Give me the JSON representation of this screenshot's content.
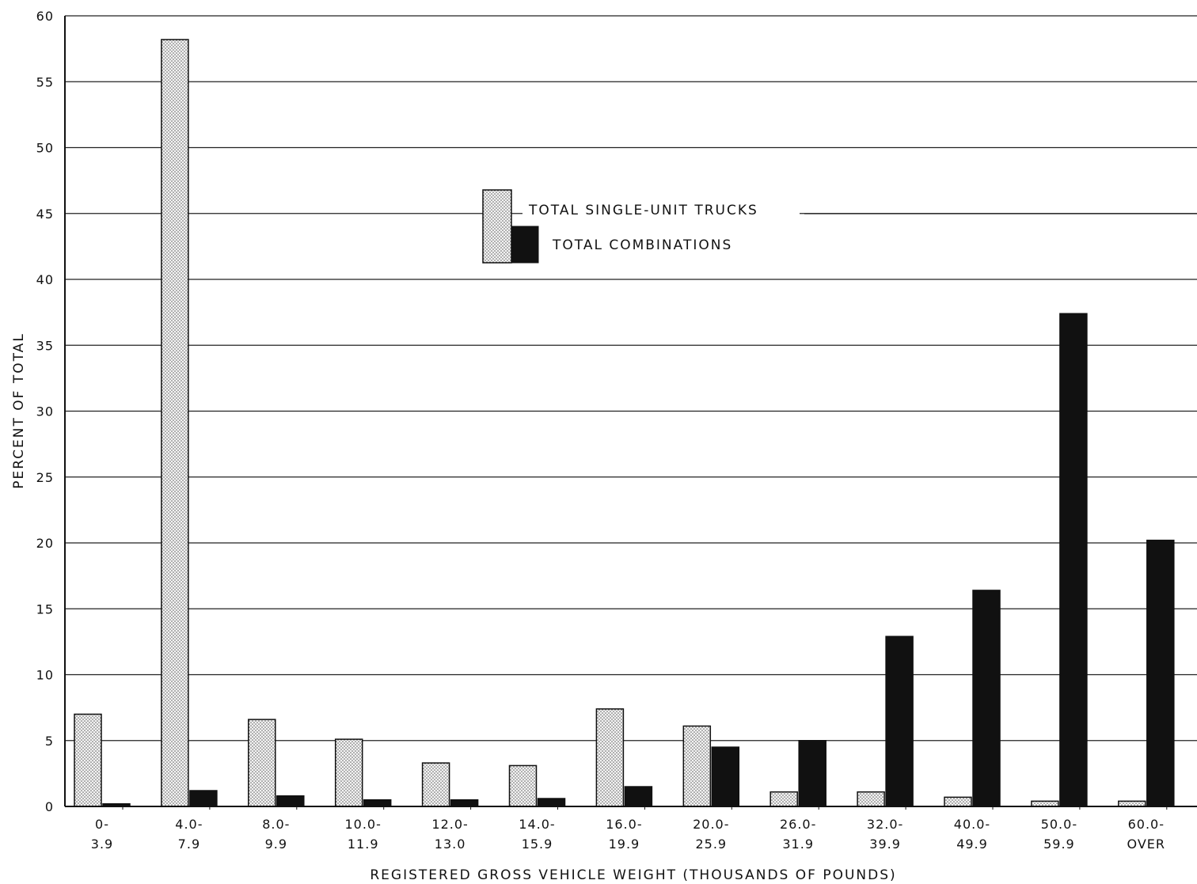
{
  "chart_data": {
    "type": "bar",
    "title": "",
    "xlabel": "REGISTERED GROSS VEHICLE WEIGHT (THOUSANDS OF POUNDS)",
    "ylabel": "PERCENT OF TOTAL",
    "ylim": [
      0,
      60
    ],
    "yticks": [
      "0",
      "5",
      "10",
      "15",
      "20",
      "25",
      "30",
      "35",
      "40",
      "45",
      "50",
      "55",
      "60"
    ],
    "grid": true,
    "legend_position": "center-top",
    "categories": [
      [
        "0-",
        "3.9"
      ],
      [
        "4.0-",
        "7.9"
      ],
      [
        "8.0-",
        "9.9"
      ],
      [
        "10.0-",
        "11.9"
      ],
      [
        "12.0-",
        "13.0"
      ],
      [
        "14.0-",
        "15.9"
      ],
      [
        "16.0-",
        "19.9"
      ],
      [
        "20.0-",
        "25.9"
      ],
      [
        "26.0-",
        "31.9"
      ],
      [
        "32.0-",
        "39.9"
      ],
      [
        "40.0-",
        "49.9"
      ],
      [
        "50.0-",
        "59.9"
      ],
      [
        "60.0-",
        "OVER"
      ]
    ],
    "series": [
      {
        "name": "TOTAL SINGLE-UNIT TRUCKS",
        "pattern": "dotted",
        "values": [
          7.0,
          58.2,
          6.6,
          5.1,
          3.3,
          3.1,
          7.4,
          6.1,
          1.1,
          1.1,
          0.7,
          0.4,
          0.4
        ]
      },
      {
        "name": "TOTAL COMBINATIONS",
        "pattern": "solid",
        "color": "#111111",
        "values": [
          0.2,
          1.2,
          0.8,
          0.5,
          0.5,
          0.6,
          1.5,
          4.5,
          5.0,
          12.9,
          16.4,
          37.4,
          20.2
        ]
      }
    ]
  }
}
